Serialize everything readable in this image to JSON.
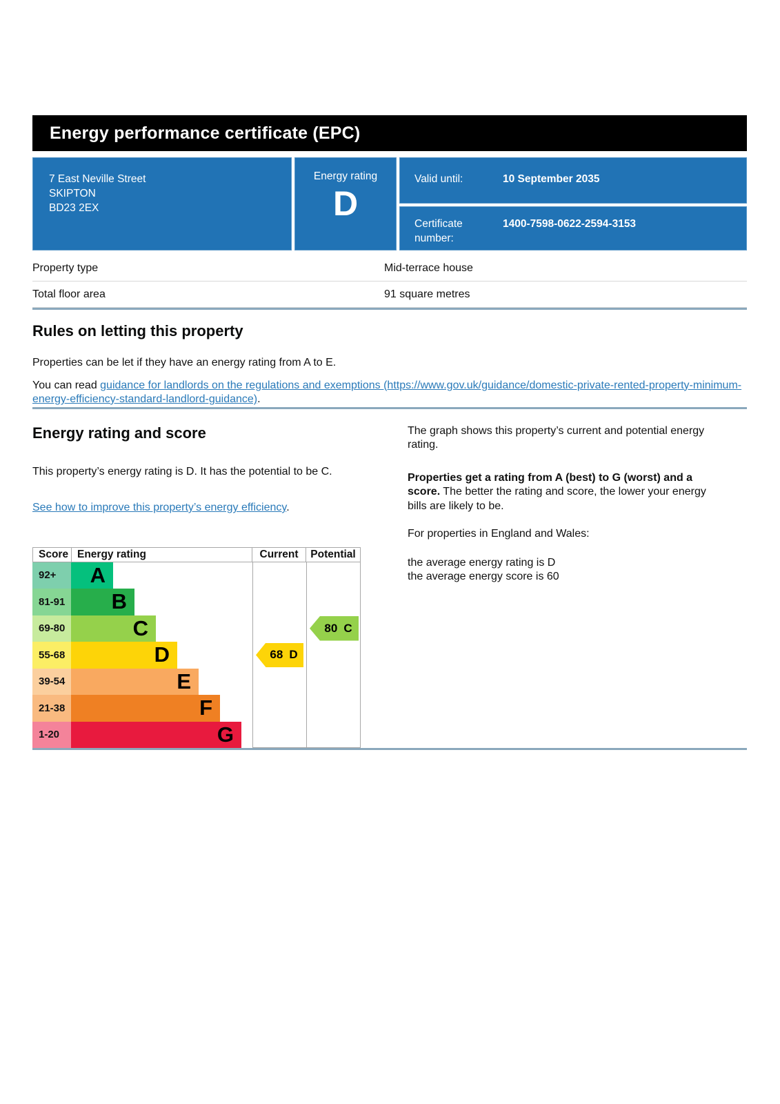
{
  "banner": {
    "title": "Energy performance certificate (EPC)"
  },
  "summary": {
    "address_lines": [
      "7 East Neville Street",
      "SKIPTON",
      "BD23 2EX"
    ],
    "energy_rating_label": "Energy rating",
    "energy_rating": "D",
    "valid_until_label": "Valid until:",
    "valid_until": "10 September 2035",
    "certificate_number_label": "Certificate number:",
    "certificate_number": "1400-7598-0622-2594-3153"
  },
  "property_table": {
    "rows": [
      {
        "label": "Property type",
        "value": "Mid-terrace house"
      },
      {
        "label": "Total floor area",
        "value": "91 square metres"
      }
    ]
  },
  "rules": {
    "heading": "Rules on letting this property",
    "paragraph1": "Properties can be let if they have an energy rating from A to E.",
    "paragraph2_prefix": "You can read ",
    "link_text": "guidance for landlords on the regulations and exemptions (https://www.gov.uk/guidance/domestic-private-rented-property-minimum-energy-efficiency-standard-landlord-guidance)",
    "paragraph2_suffix": "."
  },
  "rating_section": {
    "heading": "Energy rating and score",
    "paragraph1": "This property’s energy rating is D. It has the potential to be C.",
    "link_text": "See how to improve this property’s energy efficiency",
    "link_suffix": "."
  },
  "right_column": {
    "paragraph1": "The graph shows this property’s current and potential energy rating.",
    "paragraph2_bold": "Properties get a rating from A (best) to G (worst) and a score.",
    "paragraph2_rest": " The better the rating and score, the lower your energy bills are likely to be.",
    "paragraph3": "For properties in England and Wales:",
    "paragraph4_line1": "the average energy rating is D",
    "paragraph4_line2": "the average energy score is 60"
  },
  "chart_data": {
    "type": "bar",
    "title": "Energy rating and score",
    "headers": [
      "Score",
      "Energy rating",
      "Current",
      "Potential"
    ],
    "bands": [
      {
        "range": "92+",
        "letter": "A",
        "color": "#05c07d",
        "tint": "#7ecfad"
      },
      {
        "range": "81-91",
        "letter": "B",
        "color": "#27ae4b",
        "tint": "#86d694"
      },
      {
        "range": "69-80",
        "letter": "C",
        "color": "#95d14b",
        "tint": "#c7eb9d"
      },
      {
        "range": "55-68",
        "letter": "D",
        "color": "#fdd408",
        "tint": "#fbee65"
      },
      {
        "range": "39-54",
        "letter": "E",
        "color": "#f9a960",
        "tint": "#fbcf9e"
      },
      {
        "range": "21-38",
        "letter": "F",
        "color": "#ef8023",
        "tint": "#f9ba80"
      },
      {
        "range": "1-20",
        "letter": "G",
        "color": "#e81a3e",
        "tint": "#f4839a"
      }
    ],
    "current": {
      "score": "68",
      "band": "D"
    },
    "potential": {
      "score": "80",
      "band": "C"
    }
  },
  "colors": {
    "blue": "#2173b5",
    "link": "#2a7ab9",
    "divider": "#8aa8bc",
    "row-border": "#d8d8d8",
    "chart-border": "#a8a8a8"
  }
}
